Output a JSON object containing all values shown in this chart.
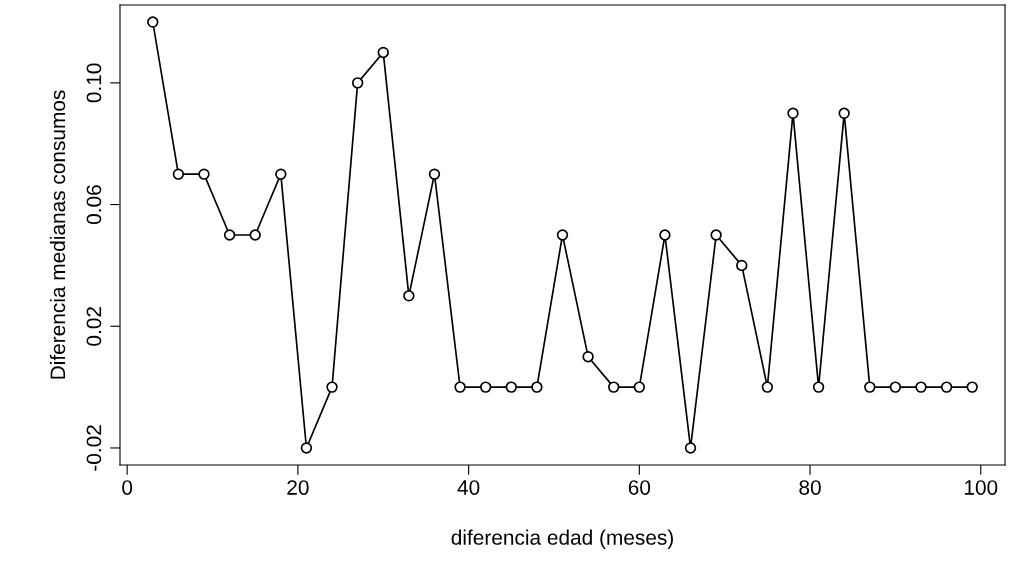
{
  "chart_data": {
    "type": "line",
    "xlabel": "diferencia edad (meses)",
    "ylabel": "Diferencia medianas consumos",
    "x": [
      3,
      6,
      9,
      12,
      15,
      18,
      21,
      24,
      27,
      30,
      33,
      36,
      39,
      42,
      45,
      48,
      51,
      54,
      57,
      60,
      63,
      66,
      69,
      72,
      75,
      78,
      81,
      84,
      87,
      90,
      93,
      96,
      99
    ],
    "series": [
      {
        "color": "#000000",
        "values": [
          0.12,
          0.07,
          0.07,
          0.05,
          0.05,
          0.07,
          -0.02,
          0,
          0.1,
          0.11,
          0.03,
          0.07,
          0,
          0,
          0,
          0,
          0.05,
          0.01,
          0,
          0,
          0.05,
          -0.02,
          0.05,
          0.04,
          0,
          0.09,
          0,
          0.09,
          0,
          0,
          0,
          0,
          0
        ]
      }
    ],
    "xlim": [
      -0.84,
      102.84
    ],
    "ylim": [
      -0.0256,
      0.1256
    ],
    "xticks": [
      0,
      20,
      40,
      60,
      80,
      100
    ],
    "yticks": [
      {
        "value": -0.02,
        "label": "-0.02"
      },
      {
        "value": 0.02,
        "label": "0.02"
      },
      {
        "value": 0.06,
        "label": "0.06"
      },
      {
        "value": 0.1,
        "label": "0.10"
      }
    ],
    "marker": "circle",
    "line_style": "solid",
    "grid": false,
    "legend": false
  }
}
